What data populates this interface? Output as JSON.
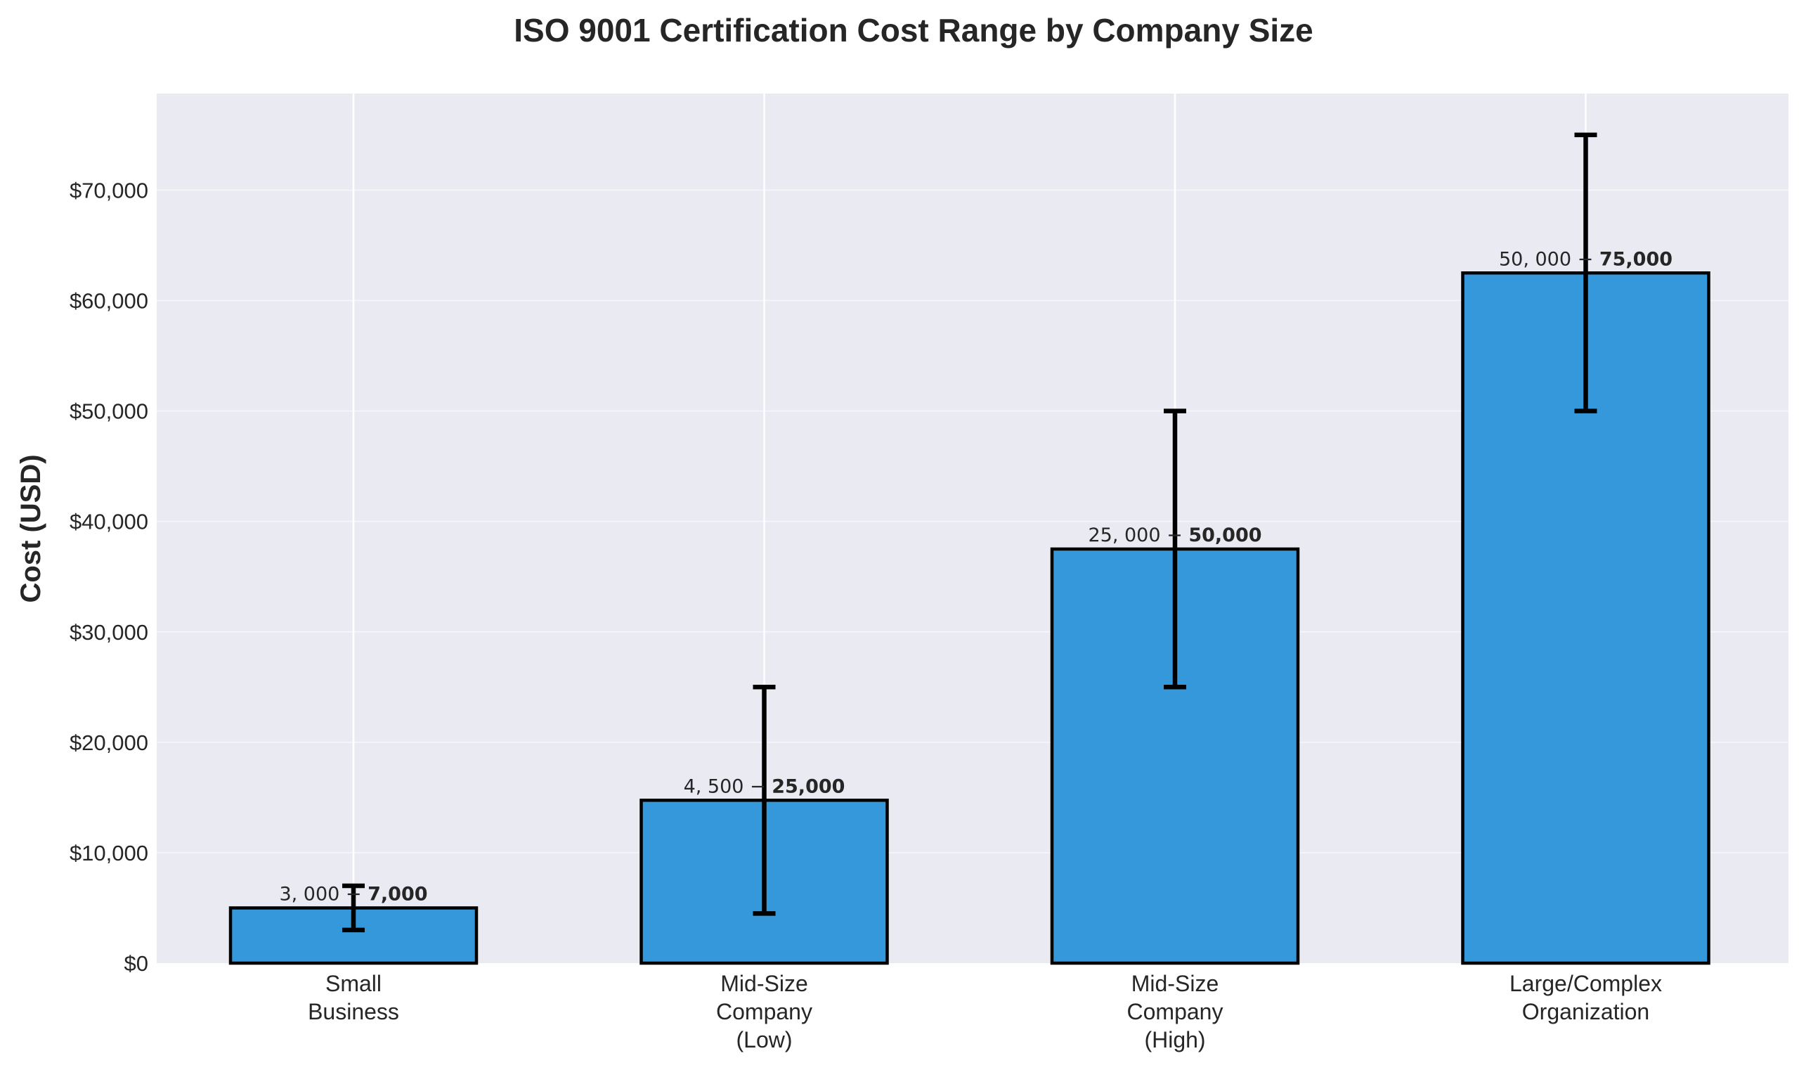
{
  "chart_data": {
    "type": "bar",
    "title": "ISO 9001 Certification Cost Range by Company Size",
    "xlabel": "",
    "ylabel": "Cost (USD)",
    "ylim": [
      0,
      78750
    ],
    "yticks": [
      0,
      10000,
      20000,
      30000,
      40000,
      50000,
      60000,
      70000
    ],
    "ytick_labels": [
      "$0",
      "$10,000",
      "$20,000",
      "$30,000",
      "$40,000",
      "$50,000",
      "$60,000",
      "$70,000"
    ],
    "categories": [
      [
        "Small",
        "Business"
      ],
      [
        "Mid-Size",
        "Company",
        "(Low)"
      ],
      [
        "Mid-Size",
        "Company",
        "(High)"
      ],
      [
        "Large/Complex",
        "Organization"
      ]
    ],
    "values": [
      5000,
      14750,
      37500,
      62500
    ],
    "error_low": [
      3000,
      4500,
      25000,
      50000
    ],
    "error_high": [
      7000,
      25000,
      50000,
      75000
    ],
    "data_labels": [
      {
        "prefix": "3, 000 − ",
        "bold": "7,000"
      },
      {
        "prefix": "4, 500 − ",
        "bold": "25,000"
      },
      {
        "prefix": "25, 000 − ",
        "bold": "50,000"
      },
      {
        "prefix": "50, 000 − ",
        "bold": "75,000"
      }
    ],
    "colors": {
      "bar": "#3498db",
      "edge": "#000000",
      "plot_bg": "#eaeaf2",
      "grid": "#ffffff"
    },
    "grid": true,
    "legend": "none"
  }
}
